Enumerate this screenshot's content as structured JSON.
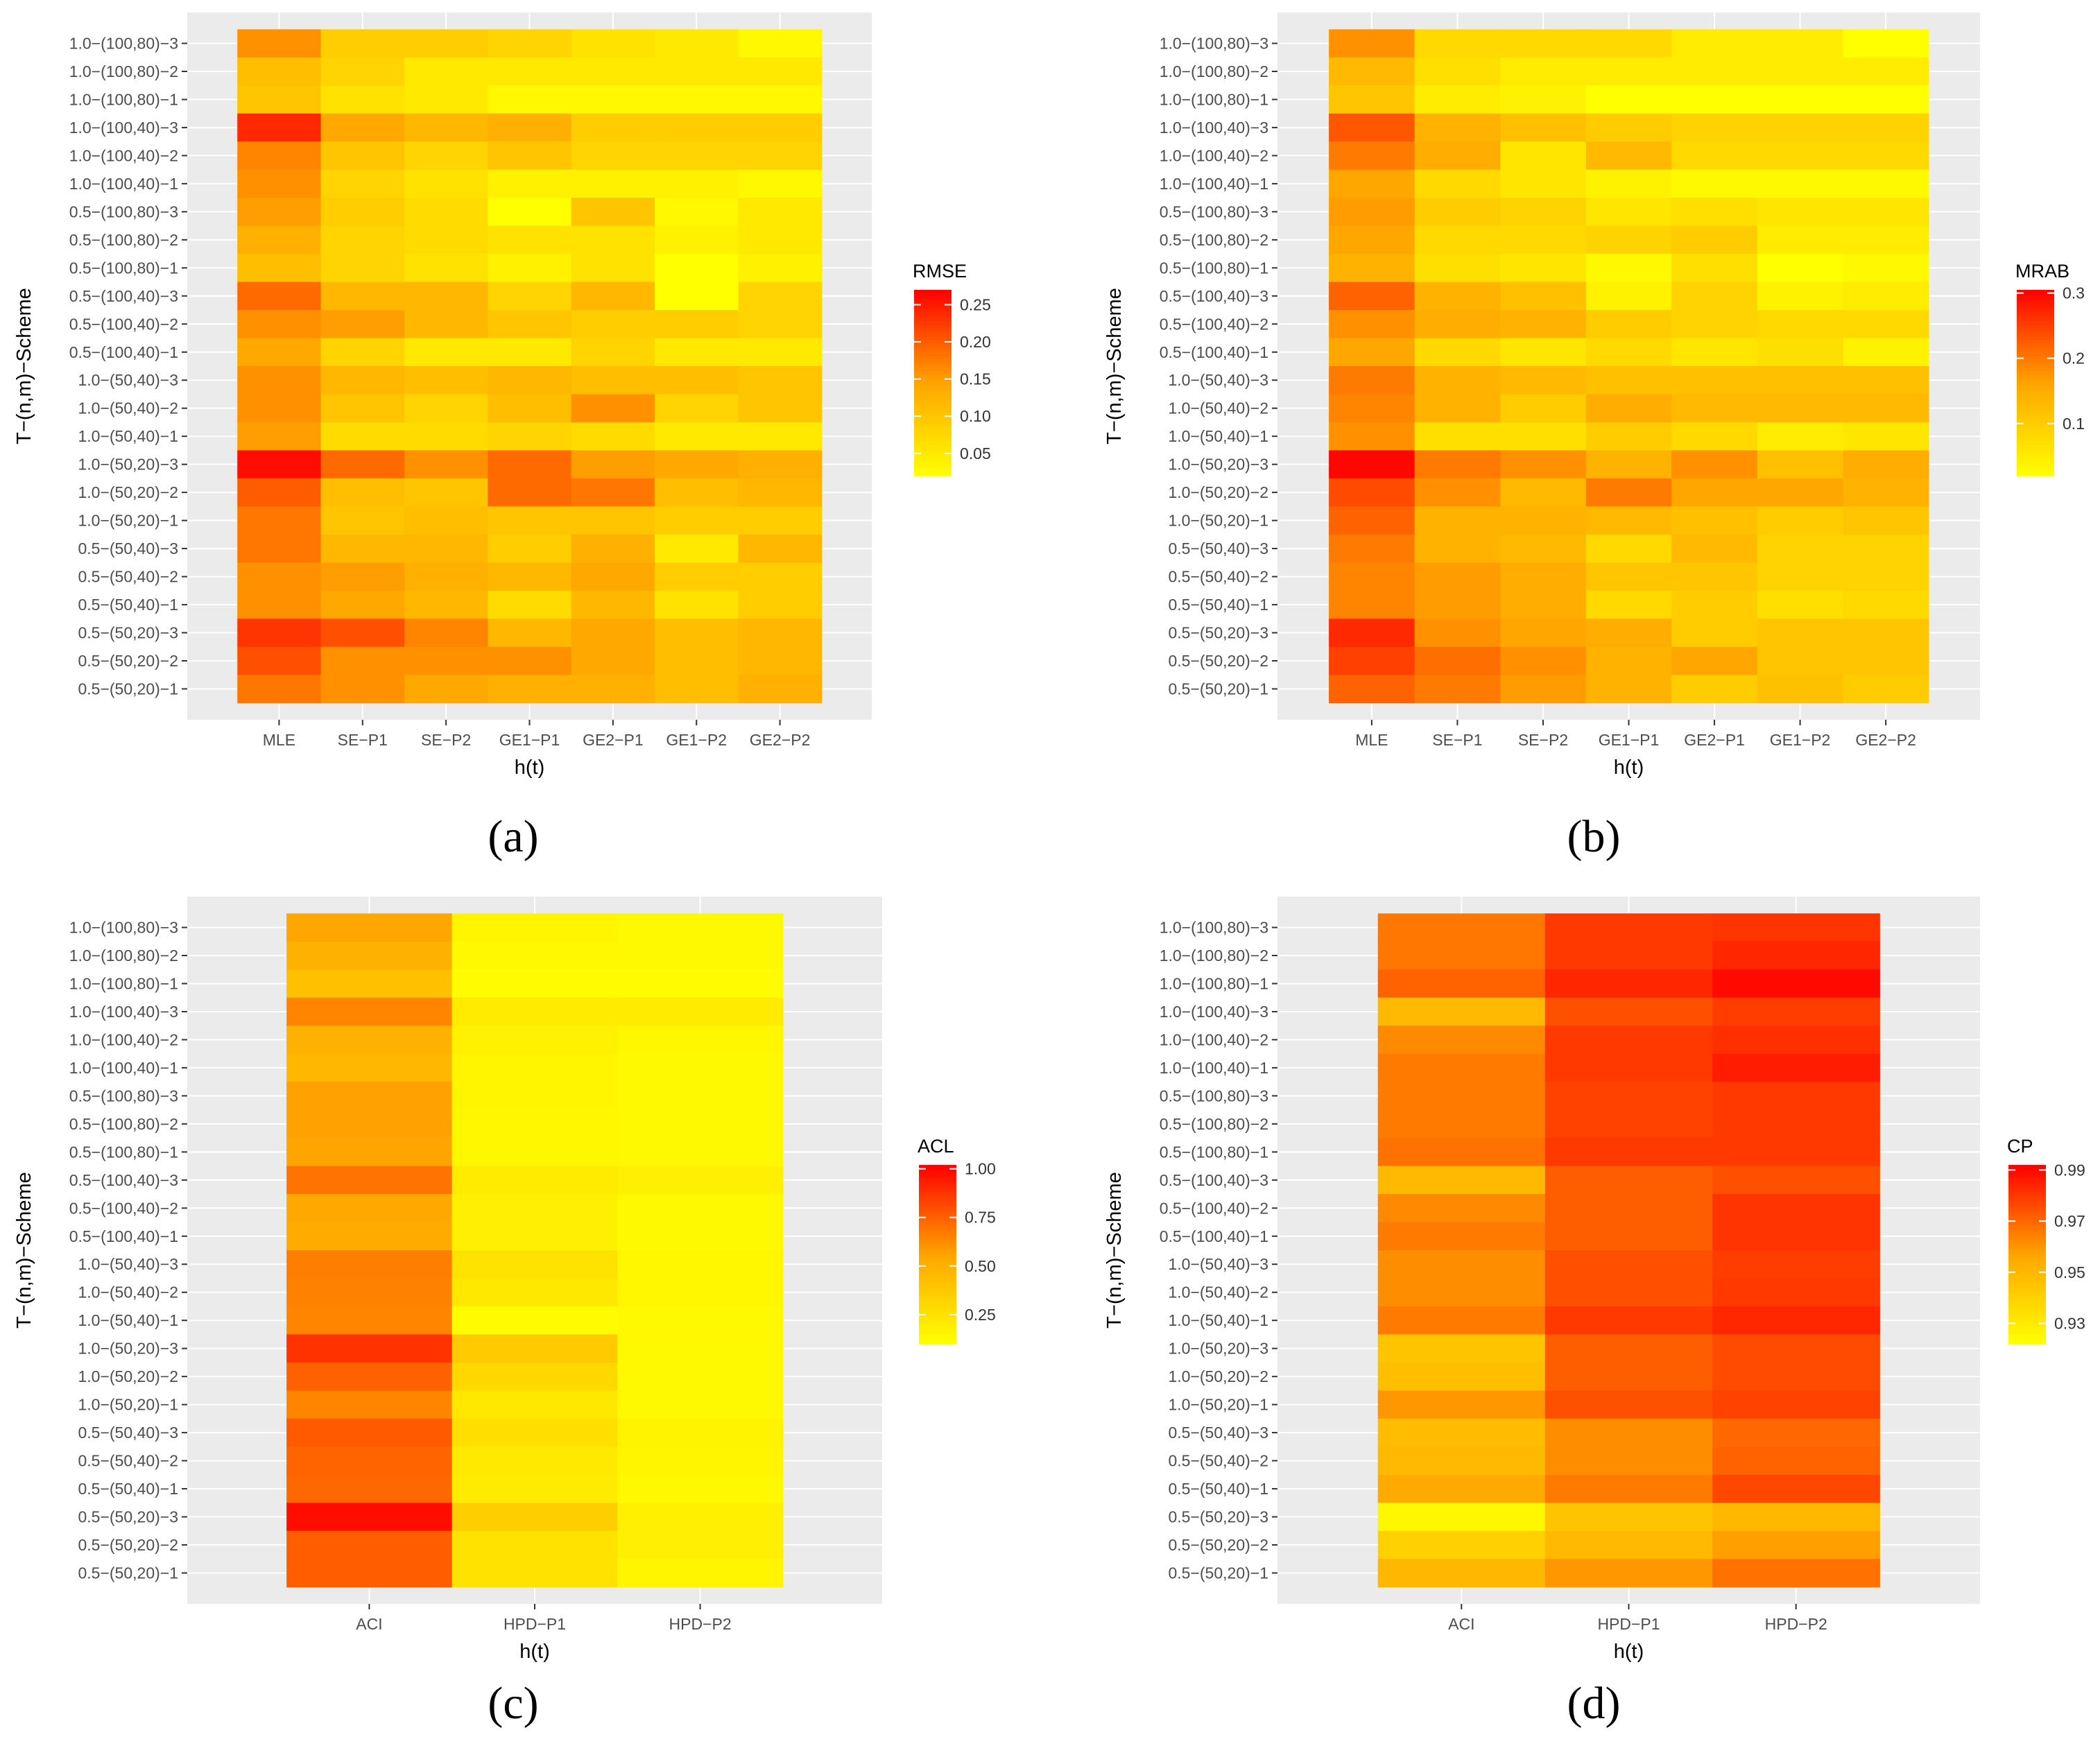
{
  "figure": {
    "panel_labels": [
      "(a)",
      "(b)",
      "(c)",
      "(d)"
    ]
  },
  "chart_data": [
    {
      "type": "heatmap",
      "panel": "(a)",
      "xlabel": "h(t)",
      "ylabel": "T−(n,m)−Scheme",
      "x": [
        "MLE",
        "SE−P1",
        "SE−P2",
        "GE1−P1",
        "GE2−P1",
        "GE1−P2",
        "GE2−P2"
      ],
      "y": [
        "1.0−(100,80)−3",
        "1.0−(100,80)−2",
        "1.0−(100,80)−1",
        "1.0−(100,40)−3",
        "1.0−(100,40)−2",
        "1.0−(100,40)−1",
        "0.5−(100,80)−3",
        "0.5−(100,80)−2",
        "0.5−(100,80)−1",
        "0.5−(100,40)−3",
        "0.5−(100,40)−2",
        "0.5−(100,40)−1",
        "1.0−(50,40)−3",
        "1.0−(50,40)−2",
        "1.0−(50,40)−1",
        "1.0−(50,20)−3",
        "1.0−(50,20)−2",
        "1.0−(50,20)−1",
        "0.5−(50,40)−3",
        "0.5−(50,40)−2",
        "0.5−(50,40)−1",
        "0.5−(50,20)−3",
        "0.5−(50,20)−2",
        "0.5−(50,20)−1"
      ],
      "values": [
        [
          0.16,
          0.09,
          0.09,
          0.08,
          0.06,
          0.05,
          0.03
        ],
        [
          0.11,
          0.08,
          0.05,
          0.05,
          0.05,
          0.05,
          0.05
        ],
        [
          0.1,
          0.06,
          0.05,
          0.03,
          0.03,
          0.03,
          0.03
        ],
        [
          0.24,
          0.14,
          0.12,
          0.13,
          0.09,
          0.09,
          0.09
        ],
        [
          0.17,
          0.1,
          0.08,
          0.1,
          0.08,
          0.08,
          0.08
        ],
        [
          0.16,
          0.08,
          0.06,
          0.04,
          0.04,
          0.04,
          0.03
        ],
        [
          0.15,
          0.09,
          0.07,
          0.02,
          0.1,
          0.03,
          0.05
        ],
        [
          0.13,
          0.08,
          0.07,
          0.06,
          0.06,
          0.04,
          0.05
        ],
        [
          0.11,
          0.08,
          0.06,
          0.04,
          0.06,
          0.02,
          0.04
        ],
        [
          0.19,
          0.12,
          0.12,
          0.08,
          0.12,
          0.02,
          0.08
        ],
        [
          0.16,
          0.15,
          0.12,
          0.1,
          0.09,
          0.09,
          0.08
        ],
        [
          0.14,
          0.08,
          0.05,
          0.05,
          0.08,
          0.05,
          0.05
        ],
        [
          0.16,
          0.12,
          0.11,
          0.12,
          0.11,
          0.11,
          0.1
        ],
        [
          0.16,
          0.1,
          0.08,
          0.11,
          0.16,
          0.08,
          0.1
        ],
        [
          0.15,
          0.07,
          0.07,
          0.08,
          0.07,
          0.05,
          0.05
        ],
        [
          0.26,
          0.19,
          0.16,
          0.19,
          0.15,
          0.14,
          0.13
        ],
        [
          0.2,
          0.11,
          0.1,
          0.19,
          0.18,
          0.11,
          0.12
        ],
        [
          0.18,
          0.1,
          0.11,
          0.1,
          0.1,
          0.09,
          0.09
        ],
        [
          0.18,
          0.12,
          0.12,
          0.09,
          0.13,
          0.05,
          0.12
        ],
        [
          0.16,
          0.15,
          0.13,
          0.12,
          0.14,
          0.09,
          0.09
        ],
        [
          0.16,
          0.14,
          0.12,
          0.07,
          0.12,
          0.06,
          0.09
        ],
        [
          0.23,
          0.21,
          0.17,
          0.12,
          0.14,
          0.11,
          0.12
        ],
        [
          0.21,
          0.16,
          0.16,
          0.16,
          0.14,
          0.11,
          0.12
        ],
        [
          0.18,
          0.16,
          0.14,
          0.13,
          0.13,
          0.11,
          0.13
        ]
      ],
      "legend": {
        "title": "RMSE",
        "ticks": [
          0.05,
          0.1,
          0.15,
          0.2,
          0.25
        ],
        "tick_labels": [
          "0.05",
          "0.10",
          "0.15",
          "0.20",
          "0.25"
        ],
        "range": [
          0.02,
          0.27
        ]
      }
    },
    {
      "type": "heatmap",
      "panel": "(b)",
      "xlabel": "h(t)",
      "ylabel": "T−(n,m)−Scheme",
      "x": [
        "MLE",
        "SE−P1",
        "SE−P2",
        "GE1−P1",
        "GE2−P1",
        "GE1−P2",
        "GE2−P2"
      ],
      "y": [
        "1.0−(100,80)−3",
        "1.0−(100,80)−2",
        "1.0−(100,80)−1",
        "1.0−(100,40)−3",
        "1.0−(100,40)−2",
        "1.0−(100,40)−1",
        "0.5−(100,80)−3",
        "0.5−(100,80)−2",
        "0.5−(100,80)−1",
        "0.5−(100,40)−3",
        "0.5−(100,40)−2",
        "0.5−(100,40)−1",
        "1.0−(50,40)−3",
        "1.0−(50,40)−2",
        "1.0−(50,40)−1",
        "1.0−(50,20)−3",
        "1.0−(50,20)−2",
        "1.0−(50,20)−1",
        "0.5−(50,40)−3",
        "0.5−(50,40)−2",
        "0.5−(50,40)−1",
        "0.5−(50,20)−3",
        "0.5−(50,20)−2",
        "0.5−(50,20)−1"
      ],
      "values": [
        [
          0.18,
          0.08,
          0.08,
          0.08,
          0.05,
          0.05,
          0.02
        ],
        [
          0.13,
          0.07,
          0.05,
          0.05,
          0.05,
          0.05,
          0.05
        ],
        [
          0.11,
          0.05,
          0.04,
          0.02,
          0.02,
          0.02,
          0.02
        ],
        [
          0.23,
          0.14,
          0.12,
          0.1,
          0.09,
          0.09,
          0.09
        ],
        [
          0.2,
          0.15,
          0.06,
          0.13,
          0.08,
          0.08,
          0.08
        ],
        [
          0.16,
          0.08,
          0.06,
          0.04,
          0.03,
          0.03,
          0.03
        ],
        [
          0.17,
          0.1,
          0.09,
          0.06,
          0.07,
          0.06,
          0.06
        ],
        [
          0.16,
          0.08,
          0.08,
          0.09,
          0.1,
          0.05,
          0.05
        ],
        [
          0.14,
          0.07,
          0.06,
          0.03,
          0.07,
          0.02,
          0.03
        ],
        [
          0.22,
          0.14,
          0.12,
          0.04,
          0.09,
          0.04,
          0.05
        ],
        [
          0.18,
          0.15,
          0.14,
          0.1,
          0.09,
          0.08,
          0.08
        ],
        [
          0.16,
          0.08,
          0.06,
          0.08,
          0.06,
          0.07,
          0.04
        ],
        [
          0.2,
          0.14,
          0.13,
          0.12,
          0.12,
          0.12,
          0.12
        ],
        [
          0.19,
          0.14,
          0.1,
          0.15,
          0.13,
          0.13,
          0.13
        ],
        [
          0.18,
          0.07,
          0.07,
          0.1,
          0.08,
          0.05,
          0.06
        ],
        [
          0.3,
          0.2,
          0.18,
          0.14,
          0.18,
          0.12,
          0.15
        ],
        [
          0.24,
          0.18,
          0.13,
          0.2,
          0.16,
          0.16,
          0.14
        ],
        [
          0.22,
          0.14,
          0.14,
          0.13,
          0.12,
          0.1,
          0.11
        ],
        [
          0.2,
          0.14,
          0.13,
          0.08,
          0.13,
          0.09,
          0.09
        ],
        [
          0.19,
          0.17,
          0.15,
          0.11,
          0.11,
          0.09,
          0.09
        ],
        [
          0.19,
          0.17,
          0.15,
          0.08,
          0.1,
          0.07,
          0.08
        ],
        [
          0.27,
          0.18,
          0.16,
          0.15,
          0.1,
          0.11,
          0.11
        ],
        [
          0.25,
          0.21,
          0.18,
          0.14,
          0.16,
          0.11,
          0.11
        ],
        [
          0.22,
          0.2,
          0.17,
          0.14,
          0.1,
          0.12,
          0.1
        ]
      ],
      "legend": {
        "title": "MRAB",
        "ticks": [
          0.1,
          0.2,
          0.3
        ],
        "tick_labels": [
          "0.1",
          "0.2",
          "0.3"
        ],
        "range": [
          0.02,
          0.305
        ]
      }
    },
    {
      "type": "heatmap",
      "panel": "(c)",
      "xlabel": "h(t)",
      "ylabel": "T−(n,m)−Scheme",
      "x": [
        "ACI",
        "HPD−P1",
        "HPD−P2"
      ],
      "y": [
        "1.0−(100,80)−3",
        "1.0−(100,80)−2",
        "1.0−(100,80)−1",
        "1.0−(100,40)−3",
        "1.0−(100,40)−2",
        "1.0−(100,40)−1",
        "0.5−(100,80)−3",
        "0.5−(100,80)−2",
        "0.5−(100,80)−1",
        "0.5−(100,40)−3",
        "0.5−(100,40)−2",
        "0.5−(100,40)−1",
        "1.0−(50,40)−3",
        "1.0−(50,40)−2",
        "1.0−(50,40)−1",
        "1.0−(50,20)−3",
        "1.0−(50,20)−2",
        "1.0−(50,20)−1",
        "0.5−(50,40)−3",
        "0.5−(50,40)−2",
        "0.5−(50,40)−1",
        "0.5−(50,20)−3",
        "0.5−(50,20)−2",
        "0.5−(50,20)−1"
      ],
      "values": [
        [
          0.55,
          0.15,
          0.13
        ],
        [
          0.5,
          0.13,
          0.13
        ],
        [
          0.42,
          0.12,
          0.12
        ],
        [
          0.65,
          0.2,
          0.2
        ],
        [
          0.5,
          0.17,
          0.14
        ],
        [
          0.47,
          0.15,
          0.13
        ],
        [
          0.57,
          0.15,
          0.13
        ],
        [
          0.57,
          0.14,
          0.13
        ],
        [
          0.56,
          0.14,
          0.13
        ],
        [
          0.7,
          0.2,
          0.18
        ],
        [
          0.54,
          0.18,
          0.13
        ],
        [
          0.53,
          0.18,
          0.13
        ],
        [
          0.67,
          0.25,
          0.14
        ],
        [
          0.66,
          0.22,
          0.14
        ],
        [
          0.65,
          0.12,
          0.13
        ],
        [
          0.88,
          0.37,
          0.13
        ],
        [
          0.75,
          0.3,
          0.13
        ],
        [
          0.65,
          0.22,
          0.13
        ],
        [
          0.77,
          0.27,
          0.16
        ],
        [
          0.74,
          0.21,
          0.15
        ],
        [
          0.73,
          0.2,
          0.13
        ],
        [
          0.98,
          0.35,
          0.18
        ],
        [
          0.76,
          0.25,
          0.18
        ],
        [
          0.76,
          0.25,
          0.15
        ]
      ],
      "legend": {
        "title": "ACL",
        "ticks": [
          0.25,
          0.5,
          0.75,
          1.0
        ],
        "tick_labels": [
          "0.25",
          "0.50",
          "0.75",
          "1.00"
        ],
        "range": [
          0.1,
          1.02
        ]
      }
    },
    {
      "type": "heatmap",
      "panel": "(d)",
      "xlabel": "h(t)",
      "ylabel": "T−(n,m)−Scheme",
      "x": [
        "ACI",
        "HPD−P1",
        "HPD−P2"
      ],
      "y": [
        "1.0−(100,80)−3",
        "1.0−(100,80)−2",
        "1.0−(100,80)−1",
        "1.0−(100,40)−3",
        "1.0−(100,40)−2",
        "1.0−(100,40)−1",
        "0.5−(100,80)−3",
        "0.5−(100,80)−2",
        "0.5−(100,80)−1",
        "0.5−(100,40)−3",
        "0.5−(100,40)−2",
        "0.5−(100,40)−1",
        "1.0−(50,40)−3",
        "1.0−(50,40)−2",
        "1.0−(50,40)−1",
        "1.0−(50,20)−3",
        "1.0−(50,20)−2",
        "1.0−(50,20)−1",
        "0.5−(50,40)−3",
        "0.5−(50,40)−2",
        "0.5−(50,40)−1",
        "0.5−(50,20)−3",
        "0.5−(50,20)−2",
        "0.5−(50,20)−1"
      ],
      "values": [
        [
          0.967,
          0.98,
          0.981
        ],
        [
          0.967,
          0.98,
          0.984
        ],
        [
          0.971,
          0.984,
          0.99
        ],
        [
          0.949,
          0.975,
          0.979
        ],
        [
          0.963,
          0.98,
          0.982
        ],
        [
          0.966,
          0.98,
          0.986
        ],
        [
          0.966,
          0.978,
          0.98
        ],
        [
          0.966,
          0.978,
          0.98
        ],
        [
          0.968,
          0.98,
          0.98
        ],
        [
          0.949,
          0.972,
          0.975
        ],
        [
          0.963,
          0.972,
          0.981
        ],
        [
          0.966,
          0.972,
          0.981
        ],
        [
          0.962,
          0.975,
          0.979
        ],
        [
          0.962,
          0.975,
          0.98
        ],
        [
          0.966,
          0.98,
          0.984
        ],
        [
          0.945,
          0.972,
          0.976
        ],
        [
          0.947,
          0.972,
          0.976
        ],
        [
          0.96,
          0.975,
          0.978
        ],
        [
          0.948,
          0.962,
          0.97
        ],
        [
          0.949,
          0.962,
          0.971
        ],
        [
          0.955,
          0.966,
          0.977
        ],
        [
          0.925,
          0.945,
          0.95
        ],
        [
          0.94,
          0.949,
          0.958
        ],
        [
          0.95,
          0.96,
          0.968
        ]
      ],
      "legend": {
        "title": "CP",
        "ticks": [
          0.93,
          0.95,
          0.97,
          0.99
        ],
        "tick_labels": [
          "0.93",
          "0.95",
          "0.97",
          "0.99"
        ],
        "range": [
          0.922,
          0.992
        ]
      }
    }
  ]
}
